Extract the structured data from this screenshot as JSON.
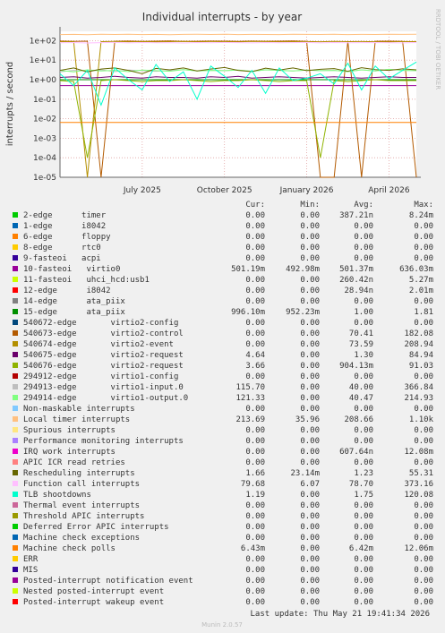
{
  "chart_data": {
    "type": "line",
    "title": "Individual interrupts - by year",
    "y_label": "interrupts / second",
    "log_scale": true,
    "grid": true,
    "categories": [
      null,
      null,
      null,
      null,
      null,
      null,
      "July 2025",
      null,
      null,
      null,
      null,
      null,
      "October 2025",
      null,
      null,
      null,
      null,
      null,
      "January 2026",
      null,
      null,
      null,
      null,
      null,
      "April 2026",
      null,
      null
    ],
    "ylim": [
      1e-05,
      300
    ],
    "yticks": [
      {
        "value": 1e-05,
        "label": "1e-05"
      },
      {
        "value": 0.0001,
        "label": "1e-04"
      },
      {
        "value": 0.001,
        "label": "1e-03"
      },
      {
        "value": 0.01,
        "label": "1e-02"
      },
      {
        "value": 0.1,
        "label": "1e-01"
      },
      {
        "value": 1,
        "label": "1e+00"
      },
      {
        "value": 10,
        "label": "1e+01"
      },
      {
        "value": 100,
        "label": "1e+02"
      }
    ],
    "stat_headers": [
      "Cur:",
      "Min:",
      "Avg:",
      "Max:"
    ],
    "series": [
      {
        "name": "2-edge      timer",
        "color": "#00cc00",
        "stats": [
          "0.00",
          "0.00",
          "387.21n",
          "8.24m"
        ]
      },
      {
        "name": "1-edge      i8042",
        "color": "#0066b3",
        "stats": [
          "0.00",
          "0.00",
          "0.00",
          "0.00"
        ]
      },
      {
        "name": "6-edge      floppy",
        "color": "#ff8000",
        "stats": [
          "0.00",
          "0.00",
          "0.00",
          "0.00"
        ]
      },
      {
        "name": "8-edge      rtc0",
        "color": "#ffcc00",
        "stats": [
          "0.00",
          "0.00",
          "0.00",
          "0.00"
        ]
      },
      {
        "name": "9-fasteoi   acpi",
        "color": "#330099",
        "stats": [
          "0.00",
          "0.00",
          "0.00",
          "0.00"
        ]
      },
      {
        "name": "10-fasteoi   virtio0",
        "color": "#990099",
        "stats": [
          "501.19m",
          "492.98m",
          "501.37m",
          "636.03m"
        ],
        "values": [
          0.5,
          0.5,
          0.5,
          0.5,
          0.5,
          0.5,
          0.5,
          0.5,
          0.5,
          0.5,
          0.5,
          0.5,
          0.5,
          0.5,
          0.5,
          0.5,
          0.5,
          0.5,
          0.5,
          0.5,
          0.5,
          0.5,
          0.5,
          0.5,
          0.5,
          0.5,
          0.5
        ]
      },
      {
        "name": "11-fasteoi   uhci_hcd:usb1",
        "color": "#ccff00",
        "stats": [
          "0.00",
          "0.00",
          "260.42n",
          "5.27m"
        ]
      },
      {
        "name": "12-edge      i8042",
        "color": "#ff0000",
        "stats": [
          "0.00",
          "0.00",
          "28.94n",
          "2.01m"
        ]
      },
      {
        "name": "14-edge      ata_piix",
        "color": "#808080",
        "stats": [
          "0.00",
          "0.00",
          "0.00",
          "0.00"
        ]
      },
      {
        "name": "15-edge      ata_piix",
        "color": "#008f00",
        "stats": [
          "996.10m",
          "952.23m",
          "1.00",
          "1.81"
        ],
        "values": [
          1,
          1,
          1,
          1,
          1,
          1,
          1,
          1,
          1,
          1,
          1,
          1,
          1,
          1,
          1,
          1,
          1,
          1,
          1,
          1,
          1,
          1,
          1,
          1,
          1,
          1,
          1
        ]
      },
      {
        "name": "540672-edge       virtio2-config",
        "color": "#00487d",
        "stats": [
          "0.00",
          "0.00",
          "0.00",
          "0.00"
        ]
      },
      {
        "name": "540673-edge       virtio2-control",
        "color": "#b35a00",
        "stats": [
          "0.00",
          "0.00",
          "70.41",
          "182.08"
        ],
        "values": [
          95,
          92,
          94,
          1e-05,
          93,
          95,
          91,
          94,
          96,
          92,
          93,
          95,
          94,
          92,
          95,
          93,
          94,
          96,
          92,
          1e-05,
          1e-05,
          95,
          1e-05,
          93,
          94,
          92,
          1e-05
        ]
      },
      {
        "name": "540674-edge       virtio2-event",
        "color": "#b38f00",
        "stats": [
          "0.00",
          "0.00",
          "73.59",
          "208.94"
        ],
        "values": [
          88,
          90,
          1e-05,
          89,
          91,
          88,
          90,
          87,
          89,
          91,
          88,
          90,
          89,
          87,
          91,
          90,
          88,
          89,
          90,
          88,
          91,
          89,
          90,
          88,
          87,
          90,
          89
        ]
      },
      {
        "name": "540675-edge       virtio2-request",
        "color": "#6b006b",
        "stats": [
          "4.64",
          "0.00",
          "1.30",
          "84.94"
        ],
        "values": [
          1.3,
          1.4,
          1.2,
          1.3,
          1.5,
          1.3,
          1.2,
          1.4,
          1.3,
          1.3,
          1.2,
          1.4,
          1.3,
          1.5,
          1.2,
          1.3,
          1.4,
          1.3,
          1.2,
          1.3,
          1.4,
          1.3,
          1.2,
          1.3,
          1.4,
          1.3,
          1.3
        ]
      },
      {
        "name": "540676-edge       virtio2-request",
        "color": "#8fb300",
        "stats": [
          "3.66",
          "0.00",
          "904.13m",
          "91.03"
        ],
        "values": [
          0.9,
          0.8,
          0.0001,
          0.9,
          1,
          0.9,
          0.8,
          0.9,
          0.9,
          1,
          0.9,
          0.8,
          0.9,
          0.9,
          1,
          0.9,
          0.8,
          0.9,
          0.9,
          0.0001,
          0.9,
          0.8,
          0.9,
          1,
          0.9,
          0.9,
          0.9
        ]
      },
      {
        "name": "294912-edge       virtio1-config",
        "color": "#b30000",
        "stats": [
          "0.00",
          "0.00",
          "0.00",
          "0.00"
        ]
      },
      {
        "name": "294913-edge       virtio1-input.0",
        "color": "#bebebe",
        "stats": [
          "115.70",
          "0.00",
          "40.00",
          "366.84"
        ],
        "values": [
          2.5,
          3,
          2.8,
          3.2,
          2.6,
          3.1,
          2.9,
          2.7,
          3,
          3.3,
          2.8,
          3,
          2.9,
          3.1,
          2.7,
          3.2,
          3,
          2.8,
          3.1,
          2.9,
          3,
          2.6,
          3.2,
          2.8,
          3.4,
          3,
          2.9
        ]
      },
      {
        "name": "294914-edge       virtio1-output.0",
        "color": "#80ff80",
        "stats": [
          "121.33",
          "0.00",
          "40.47",
          "214.93"
        ],
        "values": [
          3,
          2.5,
          3.2,
          2.8,
          3,
          2.6,
          3.1,
          2.9,
          2.7,
          3.3,
          2.8,
          3,
          2.9,
          3.1,
          2.7,
          3.2,
          3,
          2.8,
          3.1,
          2.9,
          3,
          2.6,
          3.2,
          2.8,
          3.4,
          3,
          2.9
        ]
      },
      {
        "name": "Non-maskable interrupts",
        "color": "#80c9ff",
        "stats": [
          "0.00",
          "0.00",
          "0.00",
          "0.00"
        ]
      },
      {
        "name": "Local timer interrupts",
        "color": "#ffc080",
        "stats": [
          "213.69",
          "35.96",
          "208.66",
          "1.10k"
        ],
        "values": [
          205,
          210,
          200,
          215,
          208,
          212,
          206,
          210,
          204,
          209,
          211,
          207,
          213,
          205,
          210,
          208,
          206,
          212,
          209,
          207,
          211,
          205,
          210,
          208,
          214,
          209,
          213
        ]
      },
      {
        "name": "Spurious interrupts",
        "color": "#ffe680",
        "stats": [
          "0.00",
          "0.00",
          "0.00",
          "0.00"
        ]
      },
      {
        "name": "Performance monitoring interrupts",
        "color": "#aa80ff",
        "stats": [
          "0.00",
          "0.00",
          "0.00",
          "0.00"
        ]
      },
      {
        "name": "IRQ work interrupts",
        "color": "#ee00cc",
        "stats": [
          "0.00",
          "0.00",
          "607.64n",
          "12.08m"
        ]
      },
      {
        "name": "APIC ICR read retries",
        "color": "#ff8080",
        "stats": [
          "0.00",
          "0.00",
          "0.00",
          "0.00"
        ]
      },
      {
        "name": "Rescheduling interrupts",
        "color": "#666600",
        "stats": [
          "1.66",
          "23.14m",
          "1.23",
          "55.31"
        ],
        "values": [
          3,
          4,
          2.5,
          3.5,
          4,
          3,
          2,
          3.8,
          3.2,
          4,
          2.8,
          3.5,
          4.2,
          3,
          2.6,
          3.9,
          3.1,
          4,
          2.9,
          3.4,
          3.7,
          2.7,
          4.1,
          3.3,
          3,
          3.6,
          3.2
        ]
      },
      {
        "name": "Function call interrupts",
        "color": "#ffbfff",
        "stats": [
          "79.68",
          "6.07",
          "78.70",
          "373.16"
        ],
        "values": [
          78,
          80,
          76,
          79,
          81,
          77,
          80,
          78,
          79,
          76,
          80,
          78,
          81,
          79,
          77,
          80,
          78,
          79,
          81,
          77,
          80,
          78,
          79,
          80,
          78,
          77,
          80
        ]
      },
      {
        "name": "TLB shootdowns",
        "color": "#00ffcc",
        "stats": [
          "1.19",
          "0.00",
          "1.75",
          "120.08"
        ],
        "values": [
          2,
          0.5,
          3,
          0.05,
          4,
          1,
          0.3,
          6,
          0.8,
          2.5,
          0.1,
          5,
          1.5,
          0.4,
          3,
          0.2,
          4,
          0.9,
          1.2,
          2,
          0.6,
          7,
          0.3,
          5,
          1.1,
          3,
          8
        ]
      },
      {
        "name": "Thermal event interrupts",
        "color": "#cc6699",
        "stats": [
          "0.00",
          "0.00",
          "0.00",
          "0.00"
        ]
      },
      {
        "name": "Threshold APIC interrupts",
        "color": "#999900",
        "stats": [
          "0.00",
          "0.00",
          "0.00",
          "0.00"
        ]
      },
      {
        "name": "Deferred Error APIC interrupts",
        "color": "#00cc00",
        "stats": [
          "0.00",
          "0.00",
          "0.00",
          "0.00"
        ]
      },
      {
        "name": "Machine check exceptions",
        "color": "#0066b3",
        "stats": [
          "0.00",
          "0.00",
          "0.00",
          "0.00"
        ]
      },
      {
        "name": "Machine check polls",
        "color": "#ff8000",
        "stats": [
          "6.43m",
          "0.00",
          "6.42m",
          "12.06m"
        ],
        "values": [
          0.0064,
          0.0064,
          0.0064,
          0.0064,
          0.0064,
          0.0064,
          0.0064,
          0.0064,
          0.0064,
          0.0064,
          0.0064,
          0.0064,
          0.0064,
          0.0064,
          0.0064,
          0.0064,
          0.0064,
          0.0064,
          0.0064,
          0.0064,
          0.0064,
          0.0064,
          0.0064,
          0.0064,
          0.0064,
          0.0064,
          0.0064
        ]
      },
      {
        "name": "ERR",
        "color": "#ffcc00",
        "stats": [
          "0.00",
          "0.00",
          "0.00",
          "0.00"
        ]
      },
      {
        "name": "MIS",
        "color": "#330099",
        "stats": [
          "0.00",
          "0.00",
          "0.00",
          "0.00"
        ]
      },
      {
        "name": "Posted-interrupt notification event",
        "color": "#990099",
        "stats": [
          "0.00",
          "0.00",
          "0.00",
          "0.00"
        ]
      },
      {
        "name": "Nested posted-interrupt event",
        "color": "#ccff00",
        "stats": [
          "0.00",
          "0.00",
          "0.00",
          "0.00"
        ]
      },
      {
        "name": "Posted-interrupt wakeup event",
        "color": "#ff0000",
        "stats": [
          "0.00",
          "0.00",
          "0.00",
          "0.00"
        ]
      }
    ],
    "last_update": "Last update: Thu May 21 19:41:34 2026",
    "footer": "Munin 2.0.57",
    "watermark": "RRDTOOL / TOBI OETIKER"
  }
}
